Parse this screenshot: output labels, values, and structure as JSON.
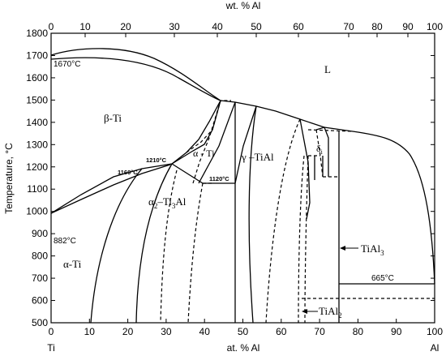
{
  "chart_data": {
    "type": "phase-diagram",
    "y_axis_title": "Temperature, °C",
    "bottom_axis": {
      "label": "at. % Al",
      "ticks": [
        "0",
        "10",
        "20",
        "30",
        "40",
        "50",
        "60",
        "70",
        "80",
        "90",
        "100"
      ],
      "ylim": [
        500,
        1800
      ]
    },
    "top_axis": {
      "label": "wt. % Al",
      "ticks": [
        "0",
        "10",
        "20",
        "30",
        "40",
        "50",
        "60",
        "70",
        "80",
        "90",
        "100"
      ]
    },
    "y_ticks": [
      "500",
      "600",
      "700",
      "800",
      "900",
      "1000",
      "1100",
      "1200",
      "1300",
      "1400",
      "1500",
      "1600",
      "1700",
      "1800"
    ],
    "endpoints": {
      "left": "Ti",
      "right": "Al"
    },
    "regions": [
      {
        "name": "L"
      },
      {
        "name": "β-Ti"
      },
      {
        "name": "α - Ti"
      },
      {
        "name": "γ –TiAl"
      },
      {
        "name_main": "α",
        "name_sub1": "2",
        "name_mid": "–Ti",
        "name_sub2": "3",
        "name_end": "Al"
      },
      {
        "name": "α-Ti"
      },
      {
        "name_main": "δ",
        "name_sub": "i"
      }
    ],
    "compound_labels": [
      {
        "main": "TiAl",
        "sub": "3"
      },
      {
        "main": "TiAl",
        "sub": "2"
      }
    ],
    "temperature_labels": [
      "1670°C",
      "882°C",
      "1160°C",
      "1210°C",
      "1120°C",
      "665°C"
    ]
  }
}
